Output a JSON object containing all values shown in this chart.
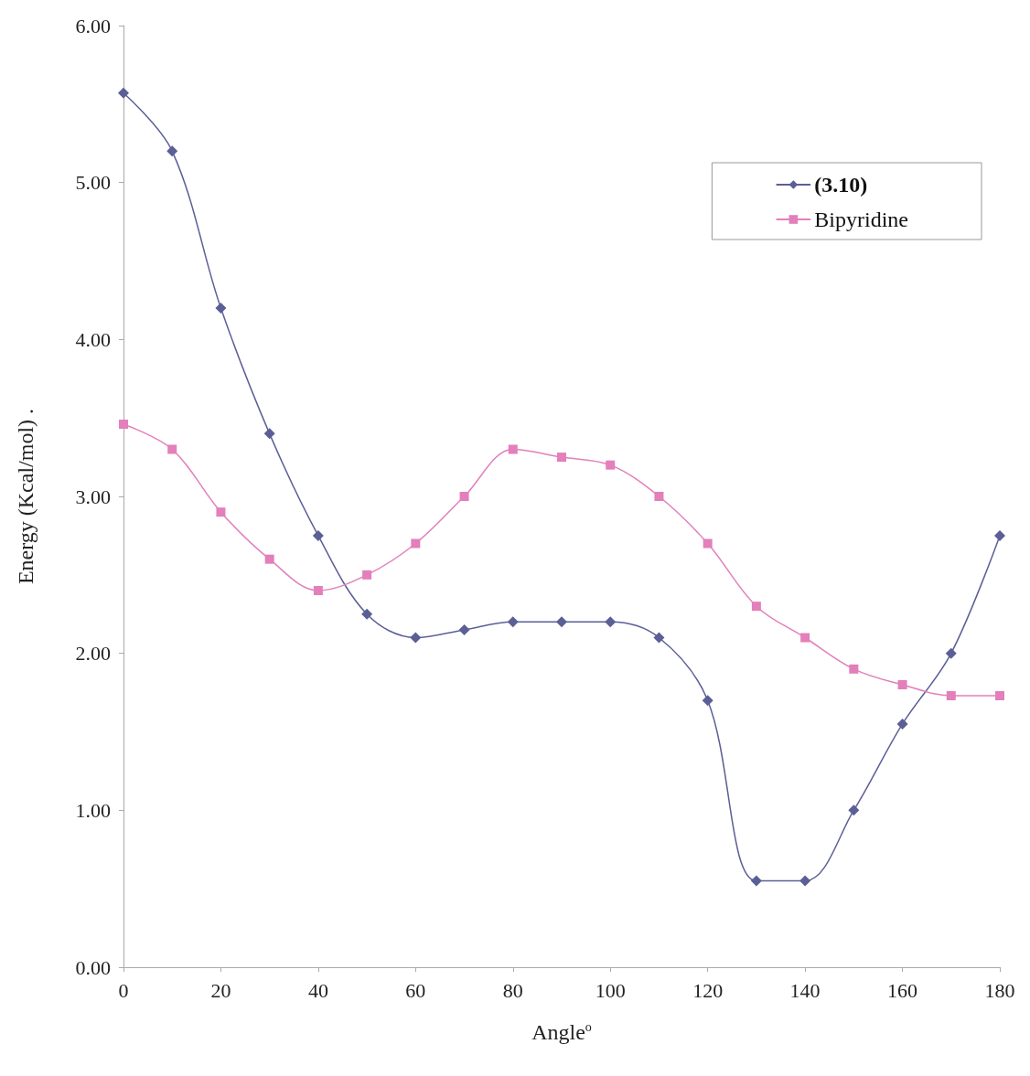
{
  "chart_data": {
    "type": "line",
    "xlabel": "Angle$^{o}$",
    "ylabel": "Energy (Kcal/mol) .",
    "x": [
      0,
      10,
      20,
      30,
      40,
      50,
      60,
      70,
      80,
      90,
      100,
      110,
      120,
      130,
      140,
      150,
      160,
      170,
      180
    ],
    "series": [
      {
        "name": "(3.10)",
        "color": "#5b5f96",
        "marker": "diamond",
        "values": [
          5.57,
          5.2,
          4.2,
          3.4,
          2.75,
          2.25,
          2.1,
          2.15,
          2.2,
          2.2,
          2.2,
          2.1,
          1.7,
          0.55,
          0.55,
          1.0,
          1.55,
          2.0,
          2.75
        ]
      },
      {
        "name": "Bipyridine",
        "color": "#e37fba",
        "marker": "square",
        "values": [
          3.46,
          3.3,
          2.9,
          2.6,
          2.4,
          2.5,
          2.7,
          3.0,
          3.3,
          3.25,
          3.2,
          3.0,
          2.7,
          2.3,
          2.1,
          1.9,
          1.8,
          1.73,
          1.73
        ]
      }
    ],
    "xlim": [
      0,
      180
    ],
    "xticks": [
      0,
      20,
      40,
      60,
      80,
      100,
      120,
      140,
      160,
      180
    ],
    "ylim": [
      0,
      6
    ],
    "yticks": [
      {
        "value": 0,
        "label": "0.00"
      },
      {
        "value": 1,
        "label": "1.00"
      },
      {
        "value": 2,
        "label": "2.00"
      },
      {
        "value": 3,
        "label": "3.00"
      },
      {
        "value": 4,
        "label": "4.00"
      },
      {
        "value": 5,
        "label": "5.00"
      },
      {
        "value": 6,
        "label": "6.00"
      }
    ],
    "grid": false,
    "legend": "top right",
    "line_style": "solid"
  }
}
